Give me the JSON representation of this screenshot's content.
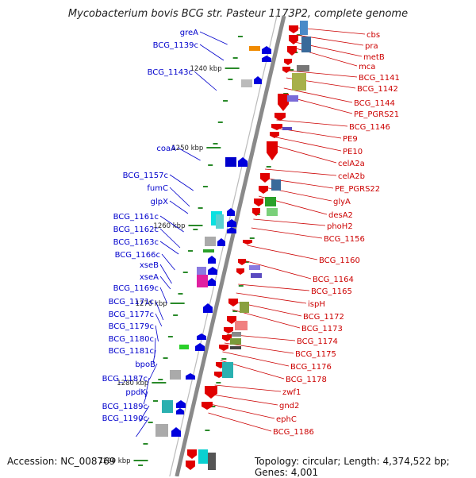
{
  "title": "Mycobacterium bovis BCG str. Pasteur 1173P2, complete genome",
  "accession_text": "Accession: NC_008769",
  "topology_text": "Topology: circular; Length: 4,374,522 bp; Genes: 4,001",
  "colors": {
    "backbone": "#8a8a8a",
    "left_labels": "#0000cc",
    "right_labels": "#cc0000",
    "tick": "#2a8a2a",
    "minus_strand": "#0000dd",
    "plus_strand": "#e00000"
  },
  "kbp_markers": [
    "1240 kbp",
    "1250 kbp",
    "1260 kbp",
    "1270 kbp",
    "1280 kbp",
    "1290 kbp"
  ],
  "left_labels": [
    "greA",
    "BCG_1139c",
    "BCG_1143c",
    "coaA",
    "BCG_1157c",
    "fumC",
    "glpX",
    "BCG_1161c",
    "BCG_1162c",
    "BCG_1163c",
    "BCG_1166c",
    "xseB",
    "xseA",
    "BCG_1169c",
    "BCG_1171c",
    "BCG_1177c",
    "BCG_1179c",
    "BCG_1180c",
    "BCG_1181c",
    "bpoB",
    "BCG_1187c",
    "ppdK",
    "BCG_1189c",
    "BCG_1190c"
  ],
  "right_labels": [
    "cbs",
    "pra",
    "metB",
    "mca",
    "BCG_1141",
    "BCG_1142",
    "BCG_1144",
    "PE_PGRS21",
    "BCG_1146",
    "PE9",
    "PE10",
    "celA2a",
    "celA2b",
    "PE_PGRS22",
    "glyA",
    "desA2",
    "phoH2",
    "BCG_1156",
    "BCG_1160",
    "BCG_1164",
    "BCG_1165",
    "ispH",
    "BCG_1172",
    "BCG_1173",
    "BCG_1174",
    "BCG_1175",
    "BCG_1176",
    "BCG_1178",
    "zwf1",
    "gnd2",
    "ephC",
    "BCG_1186"
  ]
}
